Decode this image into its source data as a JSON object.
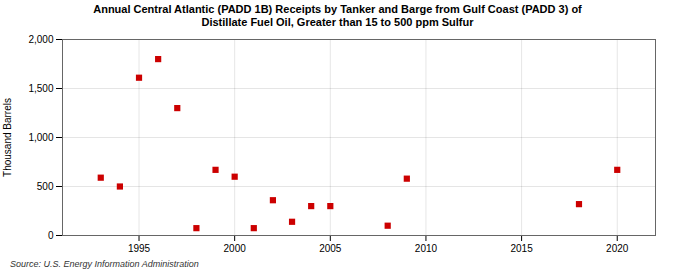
{
  "chart_data": {
    "type": "scatter",
    "title": "Annual Central Atlantic (PADD 1B) Receipts by Tanker and Barge from Gulf Coast (PADD 3) of\nDistillate Fuel Oil, Greater than 15 to 500 ppm Sulfur",
    "ylabel": "Thousand Barrels",
    "source": "Source: U.S. Energy Information Administration",
    "x": [
      1993,
      1994,
      1995,
      1996,
      1997,
      1998,
      1999,
      2000,
      2001,
      2002,
      2003,
      2004,
      2005,
      2008,
      2009,
      2018,
      2020
    ],
    "values": [
      590,
      500,
      1610,
      1800,
      1300,
      75,
      670,
      600,
      75,
      360,
      140,
      300,
      300,
      100,
      580,
      320,
      670
    ],
    "color": "#cc0000",
    "marker": "square",
    "xlim": [
      1991,
      2022
    ],
    "ylim": [
      0,
      2000
    ],
    "xticks": [
      1995,
      2000,
      2005,
      2010,
      2015,
      2020
    ],
    "yticks": [
      0,
      500,
      {
        "value": 1000,
        "label": "1,000"
      },
      {
        "value": 1500,
        "label": "1,500"
      },
      {
        "value": 2000,
        "label": "2,000"
      }
    ],
    "grid": true
  }
}
